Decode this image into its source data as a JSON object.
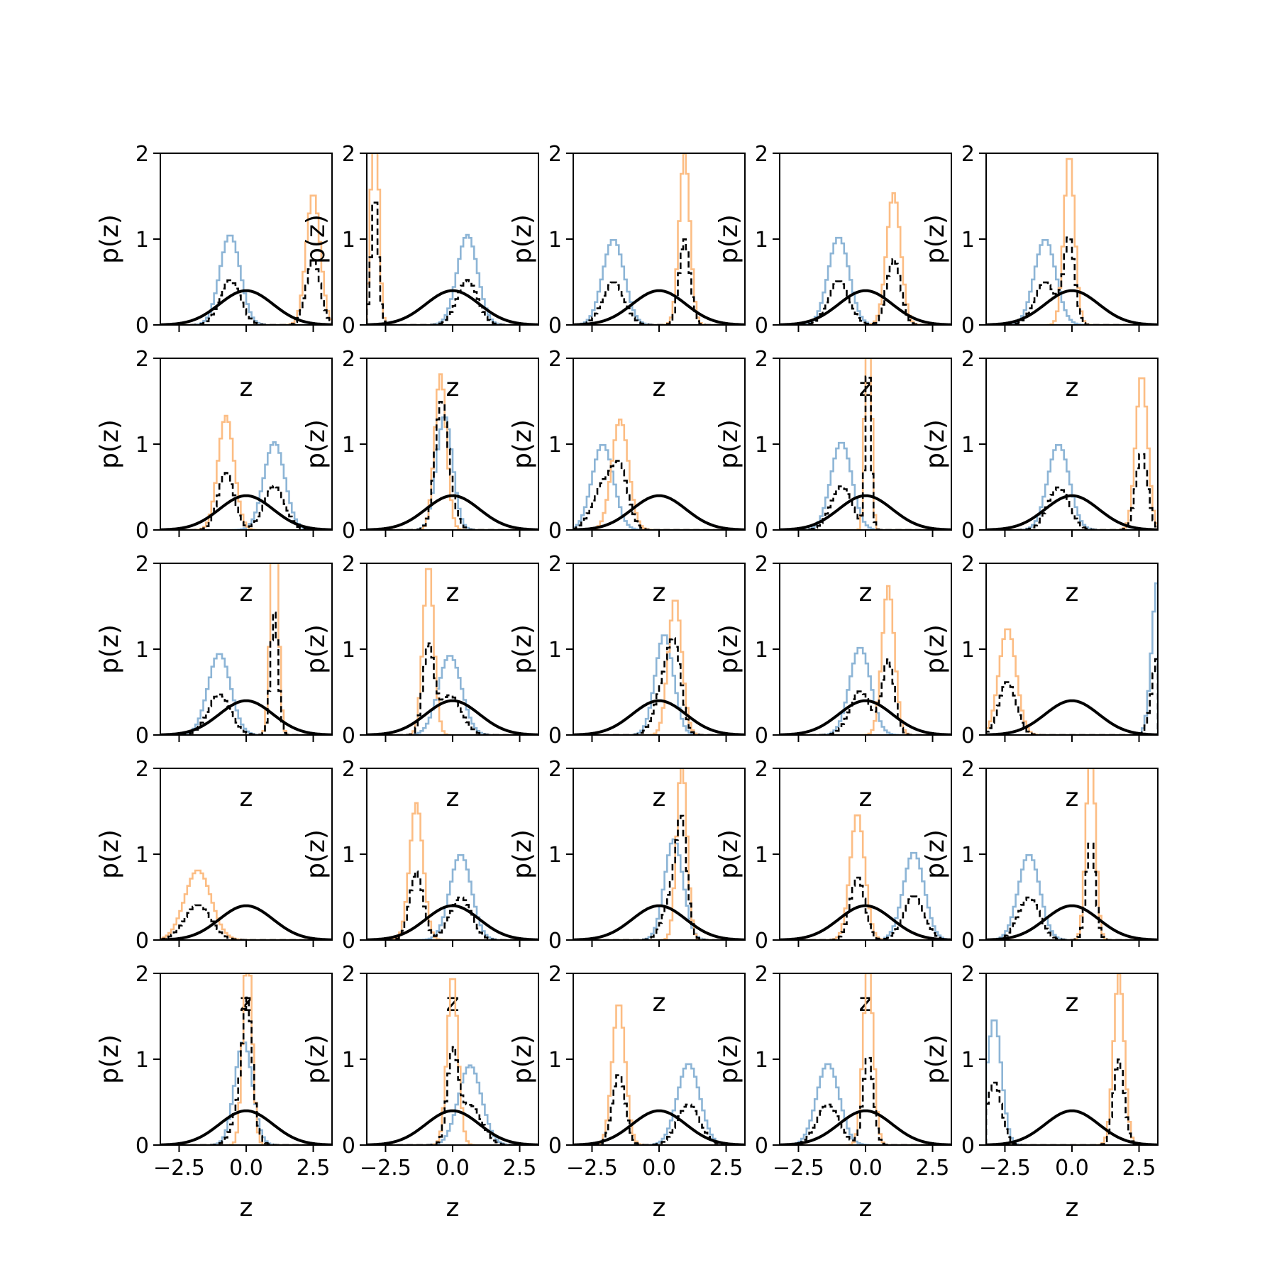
{
  "chart_data": {
    "type": "histogram-grid",
    "rows": 5,
    "cols": 5,
    "xlabel": "z",
    "ylabel": "p(z)",
    "xlim": [
      -3.2,
      3.2
    ],
    "ylim": [
      0,
      2
    ],
    "xticks": [
      -2.5,
      0.0,
      2.5
    ],
    "xtick_labels": [
      "−2.5",
      "0.0",
      "2.5"
    ],
    "yticks": [
      0,
      1,
      2
    ],
    "ytick_labels": [
      "0",
      "1",
      "2"
    ],
    "reference_curve": {
      "kind": "standard-normal",
      "mean": 0,
      "sd": 1,
      "color": "#000000"
    },
    "series_colors": {
      "blue": "#8db5d6",
      "orange": "#fcbd84",
      "dashed": "#000000"
    },
    "panels": [
      {
        "blue": {
          "mu": -0.6,
          "sd": 0.38
        },
        "orange": {
          "mu": 2.5,
          "sd": 0.26
        }
      },
      {
        "blue": {
          "mu": 0.55,
          "sd": 0.38
        },
        "orange": {
          "mu": -2.9,
          "sd": 0.13
        }
      },
      {
        "blue": {
          "mu": -1.7,
          "sd": 0.4
        },
        "orange": {
          "mu": 0.95,
          "sd": 0.2
        }
      },
      {
        "blue": {
          "mu": -1.0,
          "sd": 0.39
        },
        "orange": {
          "mu": 1.05,
          "sd": 0.26
        }
      },
      {
        "blue": {
          "mu": -1.0,
          "sd": 0.4
        },
        "orange": {
          "mu": -0.1,
          "sd": 0.2
        }
      },
      {
        "blue": {
          "mu": 1.05,
          "sd": 0.39
        },
        "orange": {
          "mu": -0.75,
          "sd": 0.3
        }
      },
      {
        "blue": {
          "mu": -0.3,
          "sd": 0.3
        },
        "orange": {
          "mu": -0.45,
          "sd": 0.22
        }
      },
      {
        "blue": {
          "mu": -2.1,
          "sd": 0.4
        },
        "orange": {
          "mu": -1.45,
          "sd": 0.31
        }
      },
      {
        "blue": {
          "mu": -0.9,
          "sd": 0.39
        },
        "orange": {
          "mu": 0.1,
          "sd": 0.1
        }
      },
      {
        "blue": {
          "mu": -0.5,
          "sd": 0.4
        },
        "orange": {
          "mu": 2.6,
          "sd": 0.22
        }
      },
      {
        "blue": {
          "mu": -1.0,
          "sd": 0.42
        },
        "orange": {
          "mu": 1.05,
          "sd": 0.14
        }
      },
      {
        "blue": {
          "mu": -0.1,
          "sd": 0.43
        },
        "orange": {
          "mu": -0.9,
          "sd": 0.2
        }
      },
      {
        "blue": {
          "mu": 0.2,
          "sd": 0.34
        },
        "orange": {
          "mu": 0.6,
          "sd": 0.25
        }
      },
      {
        "blue": {
          "mu": -0.2,
          "sd": 0.39
        },
        "orange": {
          "mu": 0.85,
          "sd": 0.23
        }
      },
      {
        "blue": {
          "mu": 3.2,
          "sd": 0.22
        },
        "orange": {
          "mu": -2.4,
          "sd": 0.32
        }
      },
      {
        "blue": null,
        "orange": {
          "mu": -1.8,
          "sd": 0.49
        }
      },
      {
        "blue": {
          "mu": 0.3,
          "sd": 0.4
        },
        "orange": {
          "mu": -1.35,
          "sd": 0.25
        }
      },
      {
        "blue": {
          "mu": 0.55,
          "sd": 0.34
        },
        "orange": {
          "mu": 0.85,
          "sd": 0.19
        }
      },
      {
        "blue": {
          "mu": 1.8,
          "sd": 0.39
        },
        "orange": {
          "mu": -0.3,
          "sd": 0.27
        }
      },
      {
        "blue": {
          "mu": -1.6,
          "sd": 0.4
        },
        "orange": {
          "mu": 0.7,
          "sd": 0.17
        }
      },
      {
        "blue": {
          "mu": -0.1,
          "sd": 0.33
        },
        "orange": {
          "mu": 0.05,
          "sd": 0.17
        }
      },
      {
        "blue": {
          "mu": 0.65,
          "sd": 0.43
        },
        "orange": {
          "mu": 0.0,
          "sd": 0.2
        }
      },
      {
        "blue": {
          "mu": 1.1,
          "sd": 0.42
        },
        "orange": {
          "mu": -1.5,
          "sd": 0.24
        }
      },
      {
        "blue": {
          "mu": -1.4,
          "sd": 0.42
        },
        "orange": {
          "mu": 0.1,
          "sd": 0.19
        }
      },
      {
        "blue": {
          "mu": -2.9,
          "sd": 0.27
        },
        "orange": {
          "mu": 1.75,
          "sd": 0.2
        }
      }
    ]
  }
}
